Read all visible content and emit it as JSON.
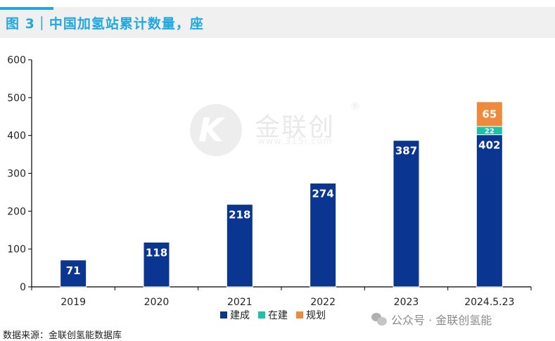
{
  "title": "图 3｜中国加氢站累计数量，座",
  "watermark": {
    "brand": "金联创",
    "reg_mark": "®",
    "url": "www.315i.com"
  },
  "chart_data": {
    "type": "bar",
    "stacked": true,
    "categories": [
      "2019",
      "2020",
      "2021",
      "2022",
      "2023",
      "2024.5.23"
    ],
    "series": [
      {
        "name": "建成",
        "color": "#0a3590",
        "values": [
          71,
          118,
          218,
          274,
          387,
          402
        ]
      },
      {
        "name": "在建",
        "color": "#1ec0a8",
        "values": [
          0,
          0,
          0,
          0,
          0,
          22
        ]
      },
      {
        "name": "规划",
        "color": "#ef8a3c",
        "values": [
          0,
          0,
          0,
          0,
          0,
          65
        ]
      }
    ],
    "ylim": [
      0,
      600
    ],
    "yticks": [
      0,
      100,
      200,
      300,
      400,
      500,
      600
    ],
    "grid": false,
    "legend_position": "bottom"
  },
  "source": "数据来源：金联创氢能数据库",
  "wechat_label": "公众号 · 金联创氢能"
}
